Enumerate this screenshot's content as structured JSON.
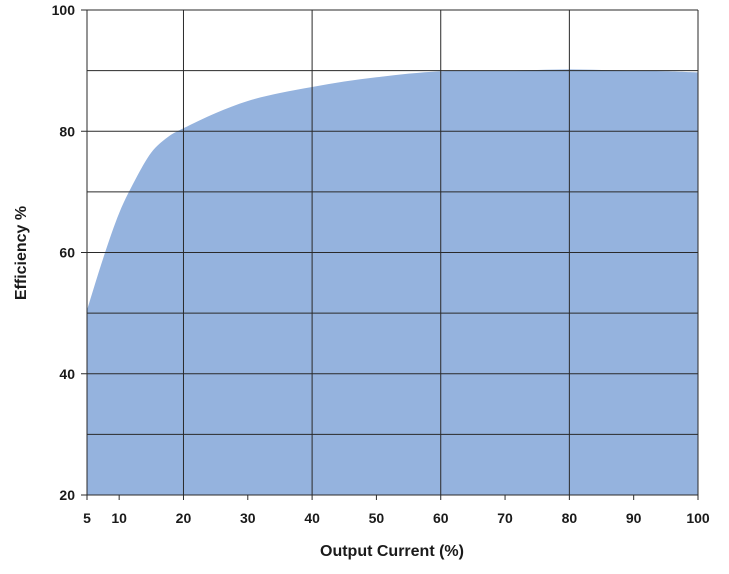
{
  "chart_data": {
    "type": "area",
    "title": "",
    "xlabel": "Output Current (%)",
    "ylabel": "Efficiency %",
    "xlim": [
      5,
      100
    ],
    "ylim": [
      20,
      100
    ],
    "grid": true,
    "x_ticks": [
      5,
      10,
      20,
      30,
      40,
      50,
      60,
      70,
      80,
      90,
      100
    ],
    "y_ticks": [
      20,
      40,
      60,
      80,
      100
    ],
    "y_gridlines": [
      20,
      30,
      40,
      50,
      60,
      70,
      80,
      90,
      100
    ],
    "x_gridlines": [
      5,
      20,
      40,
      60,
      80,
      100
    ],
    "series": [
      {
        "x": [
          5,
          7.5,
          10,
          12.5,
          15,
          17.5,
          20,
          25,
          30,
          35,
          40,
          45,
          50,
          55,
          60,
          65,
          70,
          75,
          80,
          85,
          90,
          95,
          100
        ],
        "y": [
          50.5,
          59,
          66.5,
          72,
          76.5,
          79,
          80.5,
          83,
          85,
          86.3,
          87.3,
          88.2,
          88.9,
          89.5,
          89.9,
          90,
          90,
          90.1,
          90.2,
          90.1,
          90,
          89.9,
          89.7
        ]
      }
    ],
    "colors": {
      "fill": "#95b3de",
      "grid": "#2a2a2a",
      "text": "#1a1a1a"
    }
  }
}
